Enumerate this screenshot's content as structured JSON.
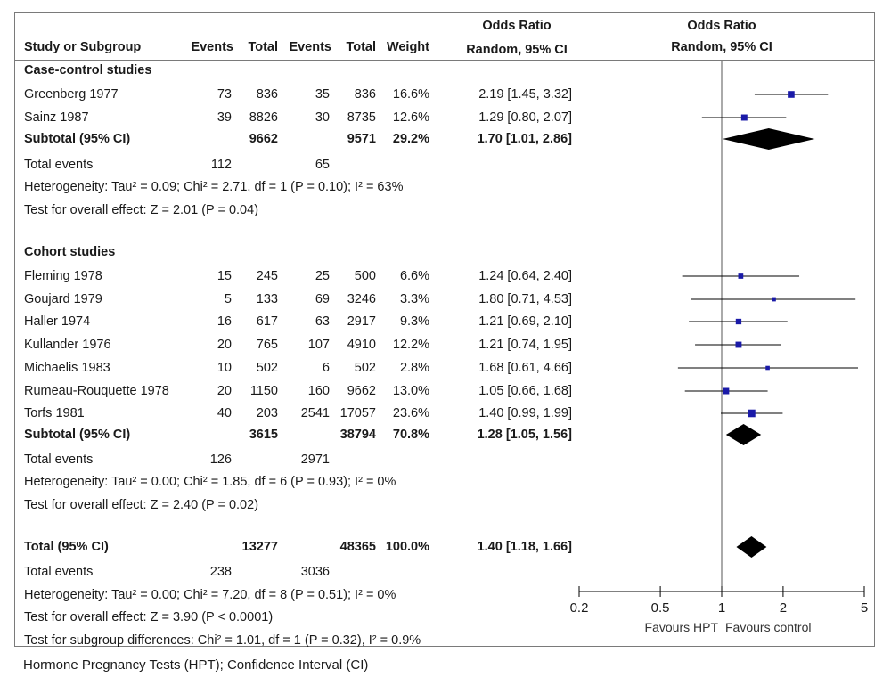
{
  "header": {
    "col_group_or": "Odds Ratio",
    "col_study": "Study or Subgroup",
    "col_events_1": "Events",
    "col_total_1": "Total",
    "col_events_2": "Events",
    "col_total_2": "Total",
    "col_weight": "Weight",
    "col_method": "Random, 95% CI",
    "plot_title": "Odds Ratio",
    "plot_method": "Random, 95% CI"
  },
  "rows": [
    {
      "type": "group",
      "study": "Case-control studies"
    },
    {
      "type": "study",
      "study": "Greenberg 1977",
      "e1": "73",
      "t1": "836",
      "e2": "35",
      "t2": "836",
      "weight": "16.6%",
      "ci_text": "2.19 [1.45, 3.32]"
    },
    {
      "type": "study",
      "study": "Sainz 1987",
      "e1": "39",
      "t1": "8826",
      "e2": "30",
      "t2": "8735",
      "weight": "12.6%",
      "ci_text": "1.29 [0.80, 2.07]"
    },
    {
      "type": "subtotal",
      "study": "Subtotal (95% CI)",
      "e1": "",
      "t1": "9662",
      "e2": "",
      "t2": "9571",
      "weight": "29.2%",
      "ci_text": "1.70 [1.01, 2.86]"
    },
    {
      "type": "info",
      "study": "Total events",
      "e1": "112",
      "e2": "65"
    },
    {
      "type": "info",
      "study": "Heterogeneity: Tau² = 0.09; Chi² = 2.71, df = 1 (P = 0.10); I² = 63%"
    },
    {
      "type": "info",
      "study": "Test for overall effect: Z = 2.01 (P = 0.04)"
    },
    {
      "type": "group",
      "study": "Cohort studies"
    },
    {
      "type": "study",
      "study": "Fleming 1978",
      "e1": "15",
      "t1": "245",
      "e2": "25",
      "t2": "500",
      "weight": "6.6%",
      "ci_text": "1.24 [0.64, 2.40]"
    },
    {
      "type": "study",
      "study": "Goujard 1979",
      "e1": "5",
      "t1": "133",
      "e2": "69",
      "t2": "3246",
      "weight": "3.3%",
      "ci_text": "1.80 [0.71, 4.53]"
    },
    {
      "type": "study",
      "study": "Haller 1974",
      "e1": "16",
      "t1": "617",
      "e2": "63",
      "t2": "2917",
      "weight": "9.3%",
      "ci_text": "1.21 [0.69, 2.10]"
    },
    {
      "type": "study",
      "study": "Kullander 1976",
      "e1": "20",
      "t1": "765",
      "e2": "107",
      "t2": "4910",
      "weight": "12.2%",
      "ci_text": "1.21 [0.74, 1.95]"
    },
    {
      "type": "study",
      "study": "Michaelis 1983",
      "e1": "10",
      "t1": "502",
      "e2": "6",
      "t2": "502",
      "weight": "2.8%",
      "ci_text": "1.68 [0.61, 4.66]"
    },
    {
      "type": "study",
      "study": "Rumeau-Rouquette 1978",
      "e1": "20",
      "t1": "1150",
      "e2": "160",
      "t2": "9662",
      "weight": "13.0%",
      "ci_text": "1.05 [0.66, 1.68]"
    },
    {
      "type": "study",
      "study": "Torfs 1981",
      "e1": "40",
      "t1": "203",
      "e2": "2541",
      "t2": "17057",
      "weight": "23.6%",
      "ci_text": "1.40 [0.99, 1.99]"
    },
    {
      "type": "subtotal",
      "study": "Subtotal (95% CI)",
      "e1": "",
      "t1": "3615",
      "e2": "",
      "t2": "38794",
      "weight": "70.8%",
      "ci_text": "1.28 [1.05, 1.56]"
    },
    {
      "type": "info",
      "study": "Total events",
      "e1": "126",
      "e2": "2971"
    },
    {
      "type": "info",
      "study": "Heterogeneity: Tau² = 0.00; Chi² = 1.85, df = 6 (P = 0.93); I² = 0%"
    },
    {
      "type": "info",
      "study": "Test for overall effect: Z = 2.40 (P = 0.02)"
    },
    {
      "type": "subtotal",
      "study": "Total (95% CI)",
      "e1": "",
      "t1": "13277",
      "e2": "",
      "t2": "48365",
      "weight": "100.0%",
      "ci_text": "1.40 [1.18, 1.66]"
    },
    {
      "type": "info",
      "study": "Total events",
      "e1": "238",
      "e2": "3036"
    },
    {
      "type": "info",
      "study": "Heterogeneity: Tau² = 0.00; Chi² = 7.20, df = 8 (P = 0.51); I² = 0%"
    },
    {
      "type": "info",
      "study": "Test for overall effect: Z = 3.90 (P < 0.0001)"
    },
    {
      "type": "info",
      "study": "Test for subgroup differences: Chi² = 1.01, df = 1 (P = 0.32), I² = 0.9%"
    }
  ],
  "chart_data": {
    "type": "forest",
    "scale": "log",
    "xlim": [
      0.2,
      5
    ],
    "ticks": [
      0.2,
      0.5,
      1,
      2,
      5
    ],
    "tick_labels": [
      "0.2",
      "0.5",
      "1",
      "2",
      "5"
    ],
    "reference_line": 1,
    "favours_left": "Favours HPT",
    "favours_right": "Favours control",
    "marker_color": "#1a1aa8",
    "points": [
      {
        "study": "Greenberg 1977",
        "or": 2.19,
        "lo": 1.45,
        "hi": 3.32,
        "weight": 16.6,
        "kind": "study"
      },
      {
        "study": "Sainz 1987",
        "or": 1.29,
        "lo": 0.8,
        "hi": 2.07,
        "weight": 12.6,
        "kind": "study"
      },
      {
        "study": "Subtotal (95% CI)",
        "or": 1.7,
        "lo": 1.01,
        "hi": 2.86,
        "weight": 29.2,
        "kind": "diamond"
      },
      {
        "study": "Fleming 1978",
        "or": 1.24,
        "lo": 0.64,
        "hi": 2.4,
        "weight": 6.6,
        "kind": "study"
      },
      {
        "study": "Goujard 1979",
        "or": 1.8,
        "lo": 0.71,
        "hi": 4.53,
        "weight": 3.3,
        "kind": "study"
      },
      {
        "study": "Haller 1974",
        "or": 1.21,
        "lo": 0.69,
        "hi": 2.1,
        "weight": 9.3,
        "kind": "study"
      },
      {
        "study": "Kullander 1976",
        "or": 1.21,
        "lo": 0.74,
        "hi": 1.95,
        "weight": 12.2,
        "kind": "study"
      },
      {
        "study": "Michaelis 1983",
        "or": 1.68,
        "lo": 0.61,
        "hi": 4.66,
        "weight": 2.8,
        "kind": "study"
      },
      {
        "study": "Rumeau-Rouquette 1978",
        "or": 1.05,
        "lo": 0.66,
        "hi": 1.68,
        "weight": 13.0,
        "kind": "study"
      },
      {
        "study": "Torfs 1981",
        "or": 1.4,
        "lo": 0.99,
        "hi": 1.99,
        "weight": 23.6,
        "kind": "study"
      },
      {
        "study": "Subtotal (95% CI)",
        "or": 1.28,
        "lo": 1.05,
        "hi": 1.56,
        "weight": 70.8,
        "kind": "diamond"
      },
      {
        "study": "Total (95% CI)",
        "or": 1.4,
        "lo": 1.18,
        "hi": 1.66,
        "weight": 100.0,
        "kind": "diamond"
      }
    ]
  },
  "caption": "Hormone Pregnancy Tests (HPT); Confidence Interval (CI)"
}
